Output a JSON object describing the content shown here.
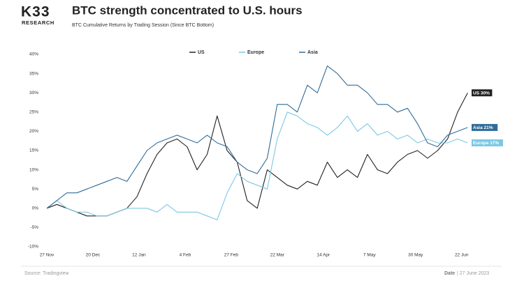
{
  "chart_data": {
    "type": "line",
    "brand": "K33",
    "brand_sub": "RESEARCH",
    "title": "BTC strength concentrated to U.S. hours",
    "subtitle": "BTC Cumulative Returns by Trading Session (Since BTC Bottom)",
    "source": "Source:  Tradingview",
    "date_label": "Date",
    "date": "| 27 June 2023",
    "x": [
      0,
      5,
      10,
      15,
      20,
      25,
      30,
      35,
      40,
      45,
      50,
      55,
      60,
      65,
      70,
      75,
      80,
      85,
      90,
      95,
      100,
      105,
      110,
      115,
      120,
      125,
      130,
      135,
      140,
      145,
      150,
      155,
      160,
      165,
      170,
      175,
      180,
      185,
      190,
      195,
      200,
      205,
      210
    ],
    "xlim": [
      0,
      220
    ],
    "xticks": [
      {
        "value": 0,
        "label": "27 Nov"
      },
      {
        "value": 23,
        "label": "20 Dec"
      },
      {
        "value": 46,
        "label": "12 Jan"
      },
      {
        "value": 69,
        "label": "4 Feb"
      },
      {
        "value": 92,
        "label": "27 Feb"
      },
      {
        "value": 115,
        "label": "22 Mar"
      },
      {
        "value": 138,
        "label": "14 Apr"
      },
      {
        "value": 161,
        "label": "7 May"
      },
      {
        "value": 184,
        "label": "30 May"
      },
      {
        "value": 207,
        "label": "22 Jun"
      }
    ],
    "ylim": [
      -10,
      40
    ],
    "yticks": [
      {
        "value": -10,
        "label": "-10%"
      },
      {
        "value": -5,
        "label": "-5%"
      },
      {
        "value": 0,
        "label": "0%"
      },
      {
        "value": 5,
        "label": "5%"
      },
      {
        "value": 10,
        "label": "10%"
      },
      {
        "value": 15,
        "label": "15%"
      },
      {
        "value": 20,
        "label": "20%"
      },
      {
        "value": 25,
        "label": "25%"
      },
      {
        "value": 30,
        "label": "30%"
      },
      {
        "value": 35,
        "label": "35%"
      },
      {
        "value": 40,
        "label": "40%"
      }
    ],
    "grid": false,
    "legend": "top",
    "series": [
      {
        "name": "US",
        "color": "#222222",
        "end_label": "US 30%",
        "values": [
          0,
          1,
          0,
          -1,
          -2,
          -2,
          -2,
          -1,
          0,
          3,
          9,
          14,
          17,
          18,
          16,
          10,
          14,
          24,
          15,
          12,
          2,
          0,
          10,
          8,
          6,
          5,
          7,
          6,
          12,
          8,
          10,
          8,
          14,
          10,
          9,
          12,
          14,
          15,
          13,
          15,
          18,
          25,
          30
        ]
      },
      {
        "name": "Europe",
        "color": "#7cc8e4",
        "end_label": "Europe 17%",
        "values": [
          0,
          2,
          0,
          -1,
          -1,
          -2,
          -2,
          -1,
          0,
          0,
          0,
          -1,
          1,
          -1,
          -1,
          -1,
          -2,
          -3,
          4,
          9,
          7,
          6,
          5,
          18,
          25,
          24,
          22,
          21,
          19,
          21,
          24,
          20,
          22,
          19,
          20,
          18,
          19,
          17,
          18,
          17,
          17,
          18,
          17
        ]
      },
      {
        "name": "Asia",
        "color": "#2f6b98",
        "end_label": "Asia 21%",
        "values": [
          0,
          2,
          4,
          4,
          5,
          6,
          7,
          8,
          7,
          11,
          15,
          17,
          18,
          19,
          18,
          17,
          19,
          17,
          16,
          12,
          10,
          9,
          13,
          27,
          27,
          25,
          32,
          30,
          37,
          35,
          32,
          32,
          30,
          27,
          27,
          25,
          26,
          22,
          17,
          16,
          19,
          20,
          21
        ]
      }
    ]
  }
}
